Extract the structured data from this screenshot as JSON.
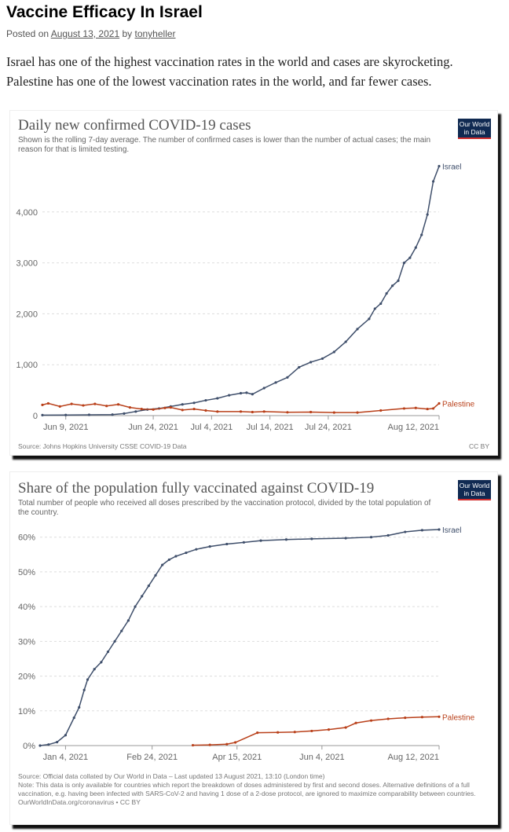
{
  "post": {
    "title": "Vaccine Efficacy In Israel",
    "posted_on": "Posted on",
    "date": "August 13, 2021",
    "by": "by",
    "author": "tonyheller",
    "intro_1": "Israel has one of the highest vaccination rates in the world and cases are skyrocketing.",
    "intro_2": "Palestine has one of the lowest vaccination rates in the world, and far fewer cases."
  },
  "logo": {
    "line1": "Our World",
    "line2": "in Data"
  },
  "colors": {
    "israel": "#3f4f6b",
    "palestine": "#b9401a",
    "grid": "#ddd"
  },
  "chart_data": [
    {
      "type": "line",
      "title": "Daily new confirmed COVID-19 cases",
      "subtitle": "Shown is the rolling 7-day average. The number of confirmed cases is lower than the number of actual cases; the main reason for that is limited testing.",
      "source": "Source: Johns Hopkins University CSSE COVID-19 Data",
      "license": "CC BY",
      "x_unit": "days since Jun 5, 2021",
      "xlim": [
        0,
        68
      ],
      "ylim": [
        0,
        5000
      ],
      "yticks": [
        {
          "v": 0,
          "label": "0"
        },
        {
          "v": 1000,
          "label": "1,000"
        },
        {
          "v": 2000,
          "label": "2,000"
        },
        {
          "v": 3000,
          "label": "3,000"
        },
        {
          "v": 4000,
          "label": "4,000"
        }
      ],
      "xticks": [
        {
          "v": 4,
          "label": "Jun 9, 2021"
        },
        {
          "v": 19,
          "label": "Jun 24, 2021"
        },
        {
          "v": 29,
          "label": "Jul 4, 2021"
        },
        {
          "v": 39,
          "label": "Jul 14, 2021"
        },
        {
          "v": 49,
          "label": "Jul 24, 2021"
        },
        {
          "v": 68,
          "label": "Aug 12, 2021"
        }
      ],
      "series": [
        {
          "name": "Israel",
          "color": "#3f4f6b",
          "x": [
            0,
            4,
            8,
            12,
            14,
            16,
            18,
            20,
            22,
            24,
            26,
            28,
            30,
            32,
            34,
            35,
            36,
            38,
            40,
            42,
            44,
            46,
            48,
            50,
            52,
            54,
            56,
            57,
            58,
            59,
            60,
            61,
            62,
            63,
            64,
            65,
            66,
            67,
            68
          ],
          "y": [
            10,
            12,
            15,
            20,
            40,
            80,
            120,
            140,
            180,
            220,
            250,
            300,
            340,
            400,
            440,
            450,
            420,
            540,
            650,
            750,
            950,
            1050,
            1120,
            1250,
            1450,
            1700,
            1900,
            2100,
            2200,
            2400,
            2550,
            2650,
            3000,
            3100,
            3300,
            3550,
            3950,
            4600,
            4900
          ]
        },
        {
          "name": "Palestine",
          "color": "#b9401a",
          "x": [
            0,
            1,
            3,
            5,
            7,
            9,
            11,
            13,
            15,
            17,
            19,
            21,
            22,
            24,
            26,
            28,
            30,
            34,
            36,
            38,
            42,
            46,
            50,
            54,
            58,
            62,
            64,
            66,
            67,
            68
          ],
          "y": [
            210,
            240,
            180,
            230,
            200,
            230,
            190,
            220,
            160,
            130,
            120,
            150,
            160,
            110,
            130,
            100,
            80,
            80,
            70,
            80,
            65,
            70,
            60,
            60,
            100,
            140,
            150,
            130,
            140,
            240
          ]
        }
      ]
    },
    {
      "type": "line",
      "title": "Share of the population fully vaccinated against COVID-19",
      "subtitle": "Total number of people who received all doses prescribed by the vaccination protocol, divided by the total population of the country.",
      "source": "Source: Official data collated by Our World in Data – Last updated 13 August 2021, 13:10 (London time)",
      "note": "Note: This data is only available for countries which report the breakdown of doses administered by first and second doses. Alternative definitions of a full vaccination, e.g. having been infected with SARS-CoV-2 and having 1 dose of a 2-dose protocol, are ignored to maximize comparability between countries.",
      "license": "OurWorldInData.org/coronavirus • CC BY",
      "x_unit": "days since Dec 20, 2020",
      "xlim": [
        0,
        235
      ],
      "ylim": [
        0,
        64
      ],
      "yticks": [
        {
          "v": 0,
          "label": "0%"
        },
        {
          "v": 10,
          "label": "10%"
        },
        {
          "v": 20,
          "label": "20%"
        },
        {
          "v": 30,
          "label": "30%"
        },
        {
          "v": 40,
          "label": "40%"
        },
        {
          "v": 50,
          "label": "50%"
        },
        {
          "v": 60,
          "label": "60%"
        }
      ],
      "xticks": [
        {
          "v": 15,
          "label": "Jan 4, 2021"
        },
        {
          "v": 66,
          "label": "Feb 24, 2021"
        },
        {
          "v": 116,
          "label": "Apr 15, 2021"
        },
        {
          "v": 166,
          "label": "Jun 4, 2021"
        },
        {
          "v": 235,
          "label": "Aug 12, 2021"
        }
      ],
      "series": [
        {
          "name": "Israel",
          "color": "#3f4f6b",
          "x": [
            0,
            5,
            10,
            15,
            20,
            23,
            26,
            28,
            32,
            36,
            40,
            44,
            48,
            52,
            56,
            60,
            64,
            68,
            72,
            76,
            80,
            86,
            92,
            100,
            110,
            120,
            130,
            145,
            160,
            180,
            195,
            205,
            215,
            225,
            235
          ],
          "y": [
            0,
            0.3,
            1,
            3,
            8,
            11,
            16,
            19,
            22,
            24,
            27,
            30,
            33,
            36,
            40,
            43,
            46,
            49,
            52,
            53.5,
            54.5,
            55.5,
            56.5,
            57.3,
            58,
            58.5,
            59,
            59.3,
            59.5,
            59.7,
            60,
            60.5,
            61.5,
            62,
            62.2
          ]
        },
        {
          "name": "Palestine",
          "color": "#b9401a",
          "x": [
            90,
            100,
            110,
            115,
            128,
            140,
            150,
            160,
            170,
            180,
            186,
            195,
            205,
            215,
            225,
            235
          ],
          "y": [
            0.1,
            0.2,
            0.4,
            0.9,
            3.7,
            3.8,
            3.9,
            4.2,
            4.6,
            5.2,
            6.5,
            7.2,
            7.7,
            8,
            8.2,
            8.3
          ]
        }
      ]
    }
  ]
}
